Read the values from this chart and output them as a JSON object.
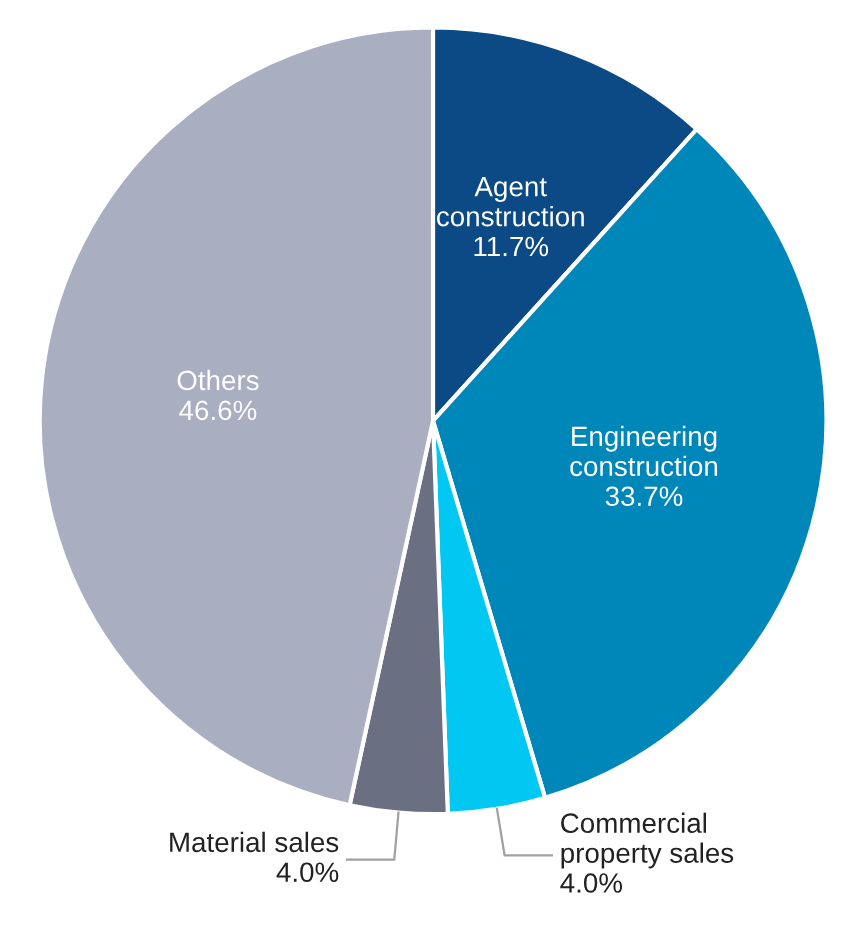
{
  "chart_data": {
    "type": "pie",
    "categories": [
      "Agent\nconstruction",
      "Engineering\nconstruction",
      "Commercial\nproperty sales",
      "Material sales",
      "Others"
    ],
    "values": [
      11.7,
      33.7,
      4.0,
      4.0,
      46.6
    ],
    "colors": [
      "#0b4a84",
      "#0087ba",
      "#00c8f2",
      "#6a6f82",
      "#a9aec1"
    ],
    "value_labels": [
      "11.7%",
      "33.7%",
      "4.0%",
      "4.0%",
      "46.6%"
    ]
  }
}
